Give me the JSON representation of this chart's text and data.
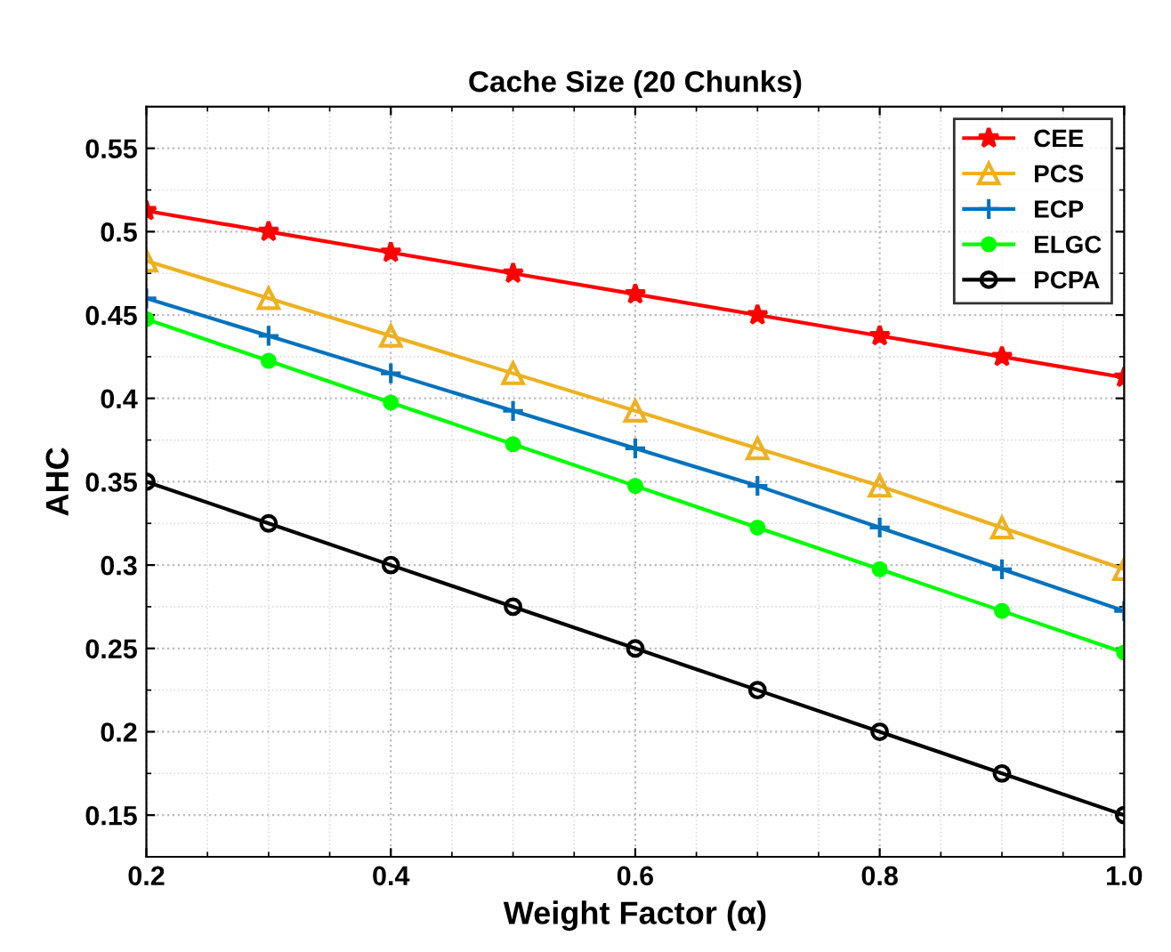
{
  "chart_data": {
    "type": "line",
    "title": "Cache Size (20 Chunks)",
    "xlabel": "Weight Factor (α)",
    "ylabel": "AHC",
    "x": [
      0.2,
      0.3,
      0.4,
      0.5,
      0.6,
      0.7,
      0.8,
      0.9,
      1.0
    ],
    "series": [
      {
        "name": "CEE",
        "color": "#ff0000",
        "marker": "star",
        "values": [
          0.5125,
          0.5,
          0.4875,
          0.475,
          0.4625,
          0.45,
          0.4375,
          0.425,
          0.4125
        ]
      },
      {
        "name": "PCS",
        "color": "#edb120",
        "marker": "triangle",
        "values": [
          0.4825,
          0.46,
          0.4375,
          0.415,
          0.3925,
          0.37,
          0.3475,
          0.3225,
          0.2975
        ]
      },
      {
        "name": "ECP",
        "color": "#0072bd",
        "marker": "cross",
        "values": [
          0.46,
          0.4375,
          0.415,
          0.3925,
          0.37,
          0.3475,
          0.3225,
          0.2975,
          0.2725
        ]
      },
      {
        "name": "ELGC",
        "color": "#00ff00",
        "marker": "circle",
        "values": [
          0.4475,
          0.4225,
          0.3975,
          0.3725,
          0.3475,
          0.3225,
          0.2975,
          0.2725,
          0.2475
        ]
      },
      {
        "name": "PCPA",
        "color": "#000000",
        "marker": "circle",
        "values": [
          0.35,
          0.325,
          0.3,
          0.275,
          0.25,
          0.225,
          0.2,
          0.175,
          0.15
        ]
      }
    ],
    "xlim": [
      0.2,
      1.0
    ],
    "xticks": [
      0.2,
      0.4,
      0.6,
      0.8,
      {
        "value": 1.0,
        "label": "1.0"
      }
    ],
    "ylim": [
      0.125,
      0.575
    ],
    "yticks": [
      0.15,
      0.2,
      0.25,
      0.3,
      0.35,
      0.4,
      0.45,
      0.5,
      0.55
    ],
    "grid": true,
    "legend": "top right",
    "line_style": "solid"
  }
}
